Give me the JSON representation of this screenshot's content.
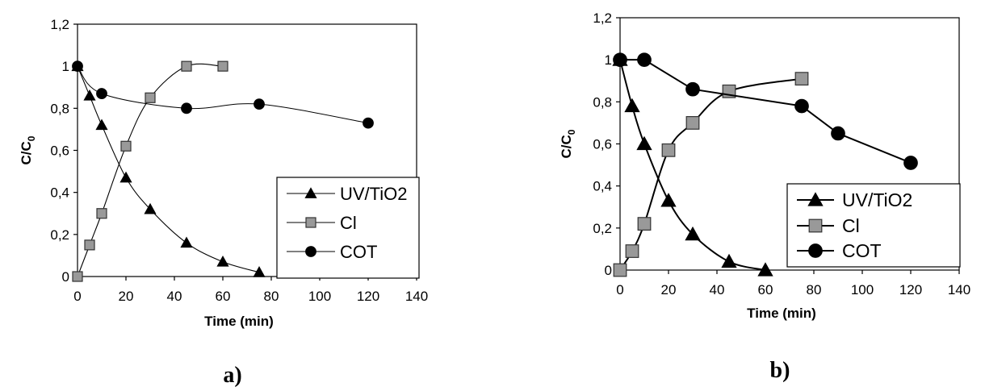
{
  "chart_data": [
    {
      "type": "line",
      "panel_label": "a)",
      "xlabel": "Time (min)",
      "ylabel": "C/C",
      "ylabel_sub": "0",
      "xlim": [
        0,
        140
      ],
      "ylim": [
        0,
        1.2
      ],
      "x_ticks": [
        "0",
        "20",
        "40",
        "60",
        "80",
        "100",
        "120",
        "140"
      ],
      "y_ticks": [
        "0",
        "0,2",
        "0,4",
        "0,6",
        "0,8",
        "1",
        "1,2"
      ],
      "grid": false,
      "legend_position": "right",
      "series": [
        {
          "name": "UV/TiO2",
          "marker": "triangle",
          "color": "#000000",
          "fill": "#000000",
          "x": [
            0,
            5,
            10,
            20,
            30,
            45,
            60,
            75
          ],
          "y": [
            1.0,
            0.86,
            0.72,
            0.47,
            0.32,
            0.16,
            0.07,
            0.02
          ]
        },
        {
          "name": "Cl",
          "marker": "square",
          "color": "#000000",
          "fill": "#999999",
          "x": [
            0,
            5,
            10,
            20,
            30,
            45,
            60
          ],
          "y": [
            0.0,
            0.15,
            0.3,
            0.62,
            0.85,
            1.0,
            1.0
          ]
        },
        {
          "name": "COT",
          "marker": "circle",
          "color": "#000000",
          "fill": "#000000",
          "x": [
            0,
            10,
            45,
            75,
            120
          ],
          "y": [
            1.0,
            0.87,
            0.8,
            0.82,
            0.73
          ]
        }
      ]
    },
    {
      "type": "line",
      "panel_label": "b)",
      "xlabel": "Time (min)",
      "ylabel": "C/C",
      "ylabel_sub": "0",
      "xlim": [
        0,
        140
      ],
      "ylim": [
        0,
        1.2
      ],
      "x_ticks": [
        "0",
        "20",
        "40",
        "60",
        "80",
        "100",
        "120",
        "140"
      ],
      "y_ticks": [
        "0",
        "0,2",
        "0,4",
        "0,6",
        "0,8",
        "1",
        "1,2"
      ],
      "grid": false,
      "legend_position": "right",
      "series": [
        {
          "name": "UV/TiO2",
          "marker": "triangle",
          "color": "#000000",
          "fill": "#000000",
          "x": [
            0,
            5,
            10,
            20,
            30,
            45,
            60
          ],
          "y": [
            1.0,
            0.78,
            0.6,
            0.33,
            0.17,
            0.04,
            0.0
          ]
        },
        {
          "name": "Cl",
          "marker": "square",
          "color": "#000000",
          "fill": "#999999",
          "x": [
            0,
            5,
            10,
            20,
            30,
            45,
            75
          ],
          "y": [
            0.0,
            0.09,
            0.22,
            0.57,
            0.7,
            0.85,
            0.91
          ]
        },
        {
          "name": "COT",
          "marker": "circle",
          "color": "#000000",
          "fill": "#000000",
          "x": [
            0,
            10,
            30,
            75,
            90,
            120
          ],
          "y": [
            1.0,
            1.0,
            0.86,
            0.78,
            0.65,
            0.51
          ]
        }
      ]
    }
  ]
}
